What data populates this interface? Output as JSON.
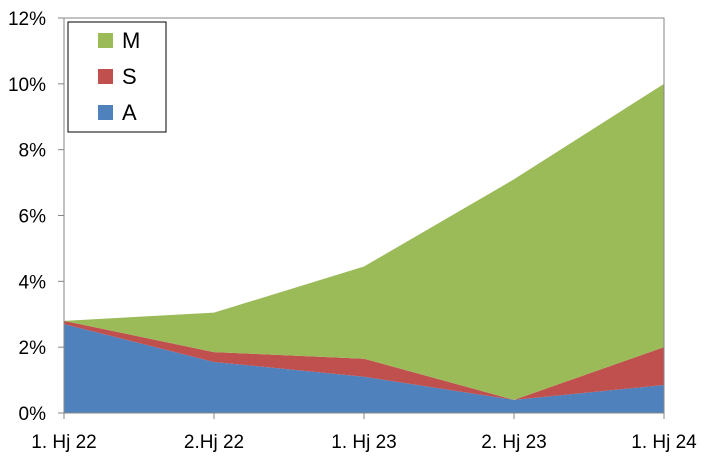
{
  "chart_data": {
    "type": "area",
    "stacked": true,
    "categories": [
      "1. Hj 22",
      "2.Hj 22",
      "1. Hj 23",
      "2. Hj 23",
      "1. Hj 24"
    ],
    "series": [
      {
        "name": "A",
        "color": "#4f81bd",
        "values": [
          2.7,
          1.55,
          1.1,
          0.4,
          0.85
        ]
      },
      {
        "name": "S",
        "color": "#c0504d",
        "values": [
          0.1,
          0.3,
          0.55,
          0.0,
          1.15
        ]
      },
      {
        "name": "M",
        "color": "#9bbb59",
        "values": [
          0.0,
          1.2,
          2.8,
          6.7,
          8.0
        ]
      }
    ],
    "ylim": [
      0,
      12
    ],
    "yticks": [
      0,
      2,
      4,
      6,
      8,
      10,
      12
    ],
    "ytick_labels": [
      "0%",
      "2%",
      "4%",
      "6%",
      "8%",
      "10%",
      "12%"
    ],
    "grid": false,
    "legend": {
      "position": "top-left",
      "order": [
        "M",
        "S",
        "A"
      ]
    },
    "title": "",
    "xlabel": "",
    "ylabel": ""
  }
}
